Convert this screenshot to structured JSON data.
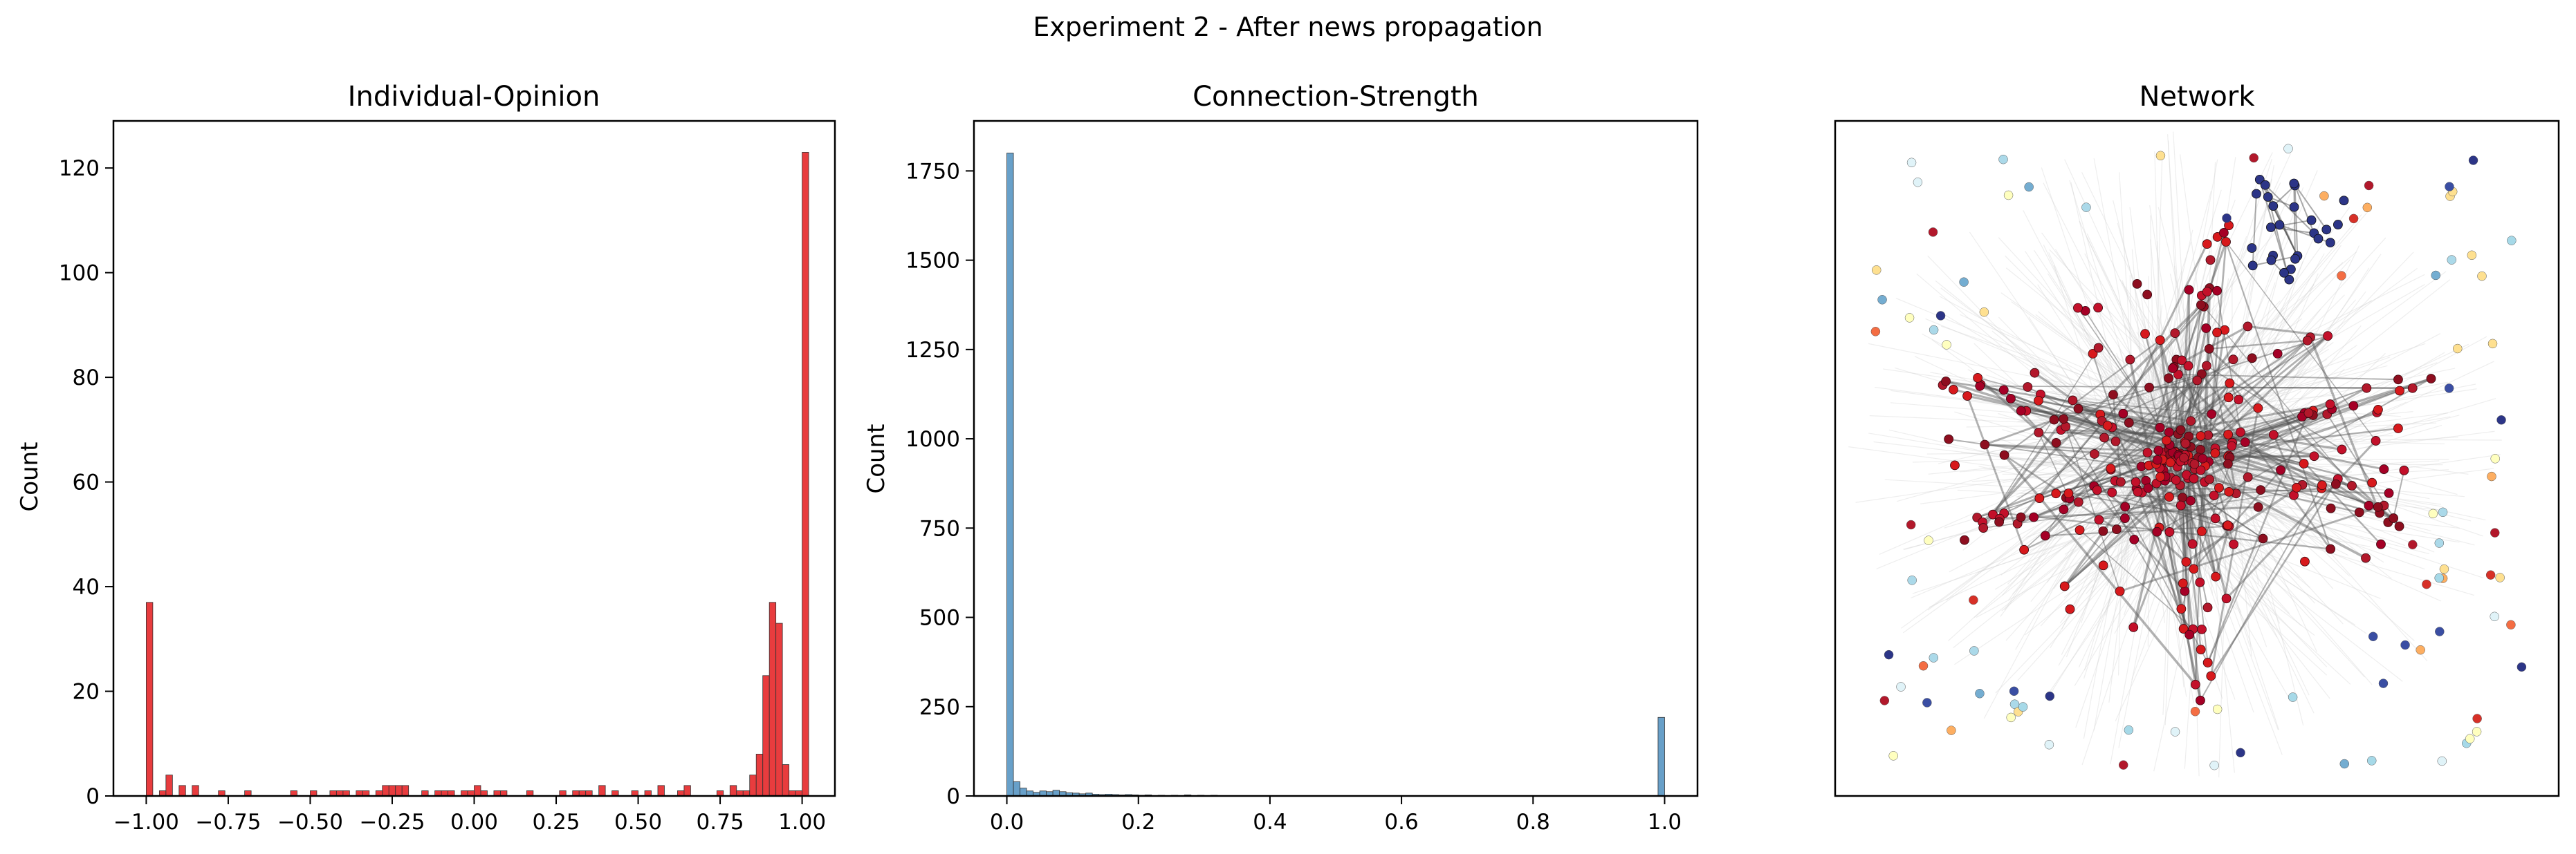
{
  "figure": {
    "suptitle": "Experiment 2 - After news propagation"
  },
  "chart_data": [
    {
      "type": "bar",
      "title": "Individual-Opinion",
      "xlabel": "",
      "ylabel": "Count",
      "xlim": [
        -1.1,
        1.1
      ],
      "ylim": [
        0,
        129
      ],
      "bin_width": 0.02,
      "color": "#e41a1c",
      "xticks": [
        -1.0,
        -0.75,
        -0.5,
        -0.25,
        0.0,
        0.25,
        0.5,
        0.75,
        1.0
      ],
      "xtick_labels": [
        "−1.00",
        "−0.75",
        "−0.50",
        "−0.25",
        "0.00",
        "0.25",
        "0.50",
        "0.75",
        "1.00"
      ],
      "yticks": [
        0,
        20,
        40,
        60,
        80,
        100,
        120
      ],
      "ytick_labels": [
        "0",
        "20",
        "40",
        "60",
        "80",
        "100",
        "120"
      ],
      "bins": [
        [
          -1.0,
          37
        ],
        [
          -0.96,
          1
        ],
        [
          -0.94,
          4
        ],
        [
          -0.9,
          2
        ],
        [
          -0.86,
          2
        ],
        [
          -0.78,
          1
        ],
        [
          -0.7,
          1
        ],
        [
          -0.56,
          1
        ],
        [
          -0.5,
          1
        ],
        [
          -0.44,
          1
        ],
        [
          -0.42,
          1
        ],
        [
          -0.4,
          1
        ],
        [
          -0.36,
          1
        ],
        [
          -0.34,
          1
        ],
        [
          -0.3,
          1
        ],
        [
          -0.28,
          2
        ],
        [
          -0.26,
          2
        ],
        [
          -0.24,
          2
        ],
        [
          -0.22,
          2
        ],
        [
          -0.16,
          1
        ],
        [
          -0.12,
          1
        ],
        [
          -0.1,
          1
        ],
        [
          -0.08,
          1
        ],
        [
          -0.04,
          1
        ],
        [
          -0.02,
          1
        ],
        [
          0.0,
          2
        ],
        [
          0.02,
          1
        ],
        [
          0.06,
          1
        ],
        [
          0.08,
          1
        ],
        [
          0.16,
          1
        ],
        [
          0.26,
          1
        ],
        [
          0.3,
          1
        ],
        [
          0.32,
          1
        ],
        [
          0.34,
          1
        ],
        [
          0.38,
          2
        ],
        [
          0.42,
          1
        ],
        [
          0.48,
          1
        ],
        [
          0.52,
          1
        ],
        [
          0.56,
          2
        ],
        [
          0.62,
          1
        ],
        [
          0.64,
          2
        ],
        [
          0.74,
          1
        ],
        [
          0.78,
          2
        ],
        [
          0.8,
          1
        ],
        [
          0.82,
          1
        ],
        [
          0.84,
          4
        ],
        [
          0.86,
          8
        ],
        [
          0.88,
          23
        ],
        [
          0.9,
          37
        ],
        [
          0.92,
          33
        ],
        [
          0.94,
          6
        ],
        [
          0.96,
          1
        ],
        [
          0.98,
          1
        ],
        [
          1.0,
          123
        ]
      ]
    },
    {
      "type": "bar",
      "title": "Connection-Strength",
      "xlabel": "",
      "ylabel": "Count",
      "xlim": [
        -0.05,
        1.05
      ],
      "ylim": [
        0,
        1890
      ],
      "bin_width": 0.01,
      "color": "#4e8fbf",
      "xticks": [
        0.0,
        0.2,
        0.4,
        0.6,
        0.8,
        1.0
      ],
      "xtick_labels": [
        "0.0",
        "0.2",
        "0.4",
        "0.6",
        "0.8",
        "1.0"
      ],
      "yticks": [
        0,
        250,
        500,
        750,
        1000,
        1250,
        1500,
        1750
      ],
      "ytick_labels": [
        "0",
        "250",
        "500",
        "750",
        "1000",
        "1250",
        "1500",
        "1750"
      ],
      "bins": [
        [
          0.0,
          1800
        ],
        [
          0.01,
          40
        ],
        [
          0.02,
          22
        ],
        [
          0.03,
          14
        ],
        [
          0.04,
          10
        ],
        [
          0.05,
          14
        ],
        [
          0.06,
          12
        ],
        [
          0.07,
          16
        ],
        [
          0.08,
          12
        ],
        [
          0.09,
          9
        ],
        [
          0.1,
          8
        ],
        [
          0.11,
          6
        ],
        [
          0.12,
          8
        ],
        [
          0.13,
          5
        ],
        [
          0.14,
          4
        ],
        [
          0.15,
          5
        ],
        [
          0.16,
          4
        ],
        [
          0.17,
          3
        ],
        [
          0.18,
          4
        ],
        [
          0.19,
          3
        ],
        [
          0.2,
          2
        ],
        [
          0.21,
          3
        ],
        [
          0.23,
          2
        ],
        [
          0.25,
          2
        ],
        [
          0.27,
          3
        ],
        [
          0.29,
          2
        ],
        [
          0.31,
          2
        ],
        [
          0.34,
          1
        ],
        [
          0.37,
          1
        ],
        [
          0.41,
          1
        ],
        [
          0.46,
          1
        ],
        [
          0.52,
          1
        ],
        [
          0.6,
          1
        ],
        [
          0.99,
          220
        ]
      ]
    },
    {
      "type": "network",
      "title": "Network",
      "xlabel": "",
      "ylabel": ""
    }
  ],
  "colors": {
    "opinion_bar": "#e41a1c",
    "strength_bar": "#4e8fbf",
    "bar_edge": "#333333",
    "node_red": "#b2182b",
    "node_blue": "#2c3587",
    "edge": "#555555"
  }
}
